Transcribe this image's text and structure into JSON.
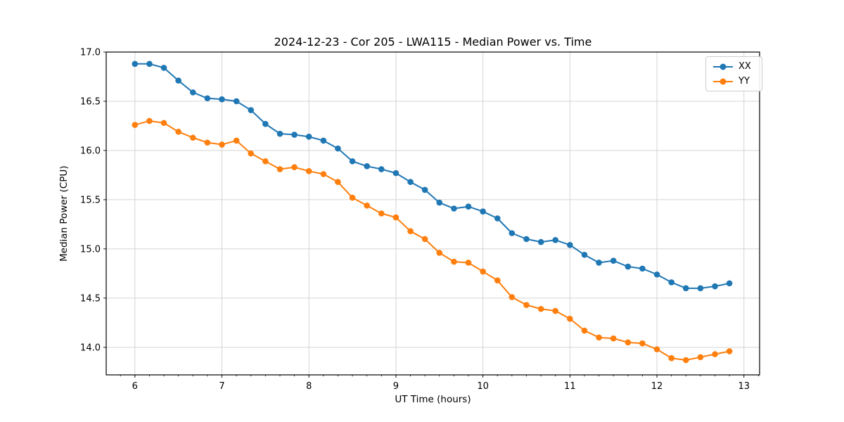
{
  "chart_data": {
    "type": "line",
    "title": "2024-12-23 - Cor 205 - LWA115 - Median Power vs. Time",
    "xlabel": "UT Time (hours)",
    "ylabel": "Median Power (CPU)",
    "xlim": [
      5.67,
      13.18
    ],
    "ylim": [
      13.72,
      17.0
    ],
    "xticks": [
      6,
      7,
      8,
      9,
      10,
      11,
      12,
      13
    ],
    "yticks": [
      14.0,
      14.5,
      15.0,
      15.5,
      16.0,
      16.5,
      17.0
    ],
    "x_minor_step": 0.166667,
    "grid": true,
    "grid_color": "#d4d4d4",
    "legend_position": "upper right",
    "x": [
      6.0,
      6.167,
      6.333,
      6.5,
      6.667,
      6.833,
      7.0,
      7.167,
      7.333,
      7.5,
      7.667,
      7.833,
      8.0,
      8.167,
      8.333,
      8.5,
      8.667,
      8.833,
      9.0,
      9.167,
      9.333,
      9.5,
      9.667,
      9.833,
      10.0,
      10.167,
      10.333,
      10.5,
      10.667,
      10.833,
      11.0,
      11.167,
      11.333,
      11.5,
      11.667,
      11.833,
      12.0,
      12.167,
      12.333,
      12.5,
      12.667,
      12.833
    ],
    "series": [
      {
        "name": "XX",
        "color": "#1f77b4",
        "values": [
          16.88,
          16.88,
          16.84,
          16.71,
          16.59,
          16.53,
          16.52,
          16.5,
          16.41,
          16.27,
          16.17,
          16.16,
          16.14,
          16.1,
          16.02,
          15.89,
          15.84,
          15.81,
          15.77,
          15.68,
          15.6,
          15.47,
          15.41,
          15.43,
          15.38,
          15.31,
          15.16,
          15.1,
          15.07,
          15.09,
          15.04,
          14.94,
          14.86,
          14.88,
          14.82,
          14.8,
          14.74,
          14.66,
          14.6,
          14.6,
          14.62,
          14.65
        ]
      },
      {
        "name": "YY",
        "color": "#ff7f0e",
        "values": [
          16.26,
          16.3,
          16.28,
          16.19,
          16.13,
          16.08,
          16.06,
          16.1,
          15.97,
          15.89,
          15.81,
          15.83,
          15.79,
          15.76,
          15.68,
          15.52,
          15.44,
          15.36,
          15.32,
          15.18,
          15.1,
          14.96,
          14.87,
          14.86,
          14.77,
          14.68,
          14.51,
          14.43,
          14.39,
          14.37,
          14.29,
          14.17,
          14.1,
          14.09,
          14.05,
          14.04,
          13.98,
          13.89,
          13.87,
          13.9,
          13.93,
          13.96
        ]
      }
    ]
  }
}
